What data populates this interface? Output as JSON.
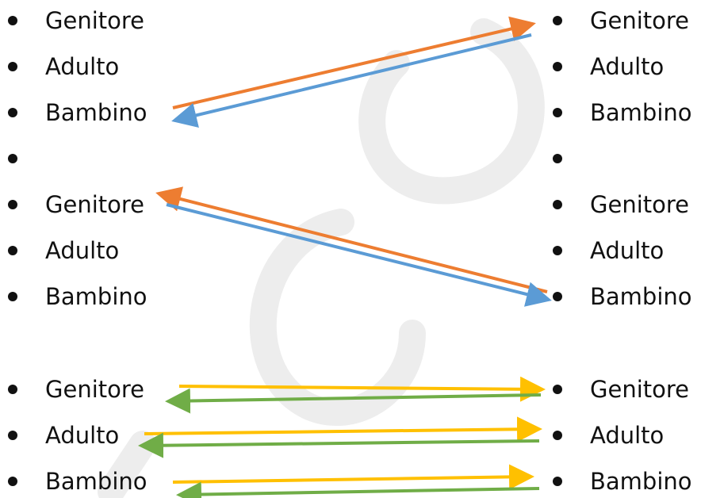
{
  "left_column": {
    "items": [
      {
        "label": "Genitore"
      },
      {
        "label": "Adulto"
      },
      {
        "label": "Bambino"
      },
      {
        "label": ""
      },
      {
        "label": "Genitore"
      },
      {
        "label": "Adulto"
      },
      {
        "label": "Bambino"
      },
      {
        "label": "Genitore"
      },
      {
        "label": "Adulto"
      },
      {
        "label": "Bambino"
      }
    ]
  },
  "right_column": {
    "items": [
      {
        "label": "Genitore"
      },
      {
        "label": "Adulto"
      },
      {
        "label": "Bambino"
      },
      {
        "label": ""
      },
      {
        "label": "Genitore"
      },
      {
        "label": "Adulto"
      },
      {
        "label": "Bambino"
      },
      {
        "label": "Genitore"
      },
      {
        "label": "Adulto"
      },
      {
        "label": "Bambino"
      }
    ]
  },
  "colors": {
    "orange": "#ED7D31",
    "blue": "#5B9BD5",
    "yellow": "#FFC000",
    "green": "#70AD47",
    "watermark": "#EDEDED"
  },
  "arrows": [
    {
      "from": "left-bambino-1",
      "to": "right-genitore-1",
      "color": "orange"
    },
    {
      "from": "right-genitore-1",
      "to": "left-bambino-1",
      "color": "blue"
    },
    {
      "from": "right-bambino-2",
      "to": "left-genitore-2",
      "color": "orange"
    },
    {
      "from": "left-genitore-2",
      "to": "right-bambino-2",
      "color": "blue"
    },
    {
      "from": "left-genitore-3",
      "to": "right-genitore-3",
      "color": "yellow"
    },
    {
      "from": "right-genitore-3",
      "to": "left-genitore-3",
      "color": "green"
    },
    {
      "from": "left-adulto-3",
      "to": "right-adulto-3",
      "color": "yellow"
    },
    {
      "from": "right-adulto-3",
      "to": "left-adulto-3",
      "color": "green"
    },
    {
      "from": "left-bambino-3",
      "to": "right-bambino-3",
      "color": "yellow"
    },
    {
      "from": "right-bambino-3",
      "to": "left-bambino-3",
      "color": "green"
    }
  ]
}
